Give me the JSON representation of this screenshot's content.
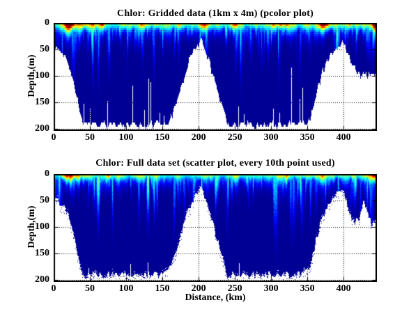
{
  "figure": {
    "background": "#ffffff",
    "axis_color": "#000000",
    "grid_style": "dotted",
    "colors": {
      "deep_water": "#000090",
      "cyan_band": "#00ccff",
      "hotspot_red": "#e01000"
    }
  },
  "chart_data": [
    {
      "type": "pcolor",
      "title": "Chlor: Gridded data (1km x 4m) (pcolor plot)",
      "xlabel": "",
      "ylabel": "Depth,(m)",
      "xlim": [
        0,
        446
      ],
      "ylim": [
        0,
        204
      ],
      "xticks": [
        0,
        50,
        100,
        150,
        200,
        250,
        300,
        350,
        400
      ],
      "yticks": [
        0,
        50,
        100,
        150,
        200
      ],
      "grid": true,
      "colormap": "jet",
      "value_scale": "chlorophyll relative 0-1, jet: 0=navy deep water, 1=red surface bloom",
      "envelope_km_depth": [
        [
          0,
          40
        ],
        [
          6,
          45
        ],
        [
          12,
          55
        ],
        [
          20,
          78
        ],
        [
          26,
          105
        ],
        [
          31,
          138
        ],
        [
          36,
          168
        ],
        [
          40,
          190
        ],
        [
          70,
          190
        ],
        [
          100,
          190
        ],
        [
          130,
          190
        ],
        [
          150,
          189
        ],
        [
          158,
          186
        ],
        [
          163,
          172
        ],
        [
          170,
          138
        ],
        [
          178,
          102
        ],
        [
          186,
          68
        ],
        [
          193,
          48
        ],
        [
          199,
          36
        ],
        [
          203,
          31
        ],
        [
          207,
          42
        ],
        [
          213,
          68
        ],
        [
          220,
          98
        ],
        [
          228,
          138
        ],
        [
          234,
          168
        ],
        [
          239,
          190
        ],
        [
          270,
          190
        ],
        [
          300,
          190
        ],
        [
          330,
          190
        ],
        [
          345,
          189
        ],
        [
          352,
          182
        ],
        [
          357,
          162
        ],
        [
          363,
          125
        ],
        [
          370,
          92
        ],
        [
          378,
          65
        ],
        [
          386,
          48
        ],
        [
          393,
          37
        ],
        [
          397,
          33
        ],
        [
          401,
          42
        ],
        [
          406,
          62
        ],
        [
          412,
          80
        ],
        [
          418,
          92
        ],
        [
          424,
          97
        ],
        [
          430,
          96
        ],
        [
          436,
          96
        ],
        [
          441,
          90
        ],
        [
          446,
          97
        ]
      ],
      "surface_intensity_km": [
        [
          0,
          0.35
        ],
        [
          6,
          0.42
        ],
        [
          12,
          0.6
        ],
        [
          17,
          0.92
        ],
        [
          21,
          1.0
        ],
        [
          26,
          0.95
        ],
        [
          31,
          0.72
        ],
        [
          38,
          0.66
        ],
        [
          46,
          0.6
        ],
        [
          54,
          0.68
        ],
        [
          60,
          0.52
        ],
        [
          66,
          0.82
        ],
        [
          71,
          0.55
        ],
        [
          78,
          0.42
        ],
        [
          86,
          0.38
        ],
        [
          94,
          0.52
        ],
        [
          101,
          0.58
        ],
        [
          108,
          0.42
        ],
        [
          115,
          0.5
        ],
        [
          121,
          0.62
        ],
        [
          128,
          0.48
        ],
        [
          136,
          0.42
        ],
        [
          143,
          0.58
        ],
        [
          150,
          0.52
        ],
        [
          157,
          0.42
        ],
        [
          164,
          0.48
        ],
        [
          171,
          0.62
        ],
        [
          179,
          0.45
        ],
        [
          187,
          0.38
        ],
        [
          195,
          0.42
        ],
        [
          202,
          0.62
        ],
        [
          208,
          0.78
        ],
        [
          214,
          0.68
        ],
        [
          221,
          0.5
        ],
        [
          229,
          0.42
        ],
        [
          238,
          0.38
        ],
        [
          247,
          0.68
        ],
        [
          252,
          0.78
        ],
        [
          257,
          0.55
        ],
        [
          264,
          0.42
        ],
        [
          272,
          0.38
        ],
        [
          280,
          0.46
        ],
        [
          288,
          0.42
        ],
        [
          295,
          0.6
        ],
        [
          301,
          0.68
        ],
        [
          308,
          0.55
        ],
        [
          314,
          0.66
        ],
        [
          321,
          0.72
        ],
        [
          328,
          0.55
        ],
        [
          336,
          0.44
        ],
        [
          344,
          0.5
        ],
        [
          351,
          0.58
        ],
        [
          359,
          0.52
        ],
        [
          366,
          0.75
        ],
        [
          372,
          0.82
        ],
        [
          379,
          0.62
        ],
        [
          386,
          0.48
        ],
        [
          393,
          0.44
        ],
        [
          400,
          0.52
        ],
        [
          407,
          0.66
        ],
        [
          414,
          0.52
        ],
        [
          421,
          0.48
        ],
        [
          427,
          0.58
        ],
        [
          433,
          0.62
        ],
        [
          437,
          0.78
        ],
        [
          441,
          0.95
        ],
        [
          446,
          1.05
        ]
      ],
      "gap_columns_km_topdepth": [
        [
          41,
          152
        ],
        [
          50,
          162
        ],
        [
          74,
          148
        ],
        [
          109,
          118
        ],
        [
          125,
          165
        ],
        [
          131,
          105
        ],
        [
          134,
          112
        ],
        [
          146,
          170
        ],
        [
          152,
          175
        ],
        [
          255,
          158
        ],
        [
          262,
          172
        ],
        [
          303,
          162
        ],
        [
          311,
          170
        ],
        [
          328,
          84
        ],
        [
          339,
          144
        ],
        [
          343,
          122
        ]
      ],
      "render": {
        "seed": 11,
        "quantize_km": 1,
        "quantize_m": 4,
        "speckle": false
      }
    },
    {
      "type": "scatter",
      "title": "Chlor: Full data set (scatter plot, every 10th point used)",
      "xlabel": "Distance, (km)",
      "ylabel": "Depth,(m)",
      "xlim": [
        0,
        446
      ],
      "ylim": [
        0,
        204
      ],
      "xticks": [
        0,
        50,
        100,
        150,
        200,
        250,
        300,
        350,
        400
      ],
      "yticks": [
        0,
        50,
        100,
        150,
        200
      ],
      "grid": true,
      "colormap": "jet",
      "value_scale": "chlorophyll relative 0-1, jet: 0=navy deep water, 1=red surface bloom",
      "envelope_km_depth": [
        [
          0,
          48
        ],
        [
          6,
          50
        ],
        [
          12,
          58
        ],
        [
          20,
          80
        ],
        [
          26,
          108
        ],
        [
          31,
          140
        ],
        [
          36,
          170
        ],
        [
          40,
          191
        ],
        [
          80,
          190
        ],
        [
          120,
          190
        ],
        [
          150,
          189
        ],
        [
          157,
          185
        ],
        [
          163,
          170
        ],
        [
          170,
          135
        ],
        [
          178,
          100
        ],
        [
          186,
          66
        ],
        [
          193,
          46
        ],
        [
          199,
          33
        ],
        [
          203,
          28
        ],
        [
          207,
          40
        ],
        [
          213,
          66
        ],
        [
          220,
          96
        ],
        [
          228,
          136
        ],
        [
          234,
          166
        ],
        [
          239,
          190
        ],
        [
          270,
          190
        ],
        [
          300,
          190
        ],
        [
          330,
          190
        ],
        [
          344,
          188
        ],
        [
          351,
          180
        ],
        [
          356,
          160
        ],
        [
          362,
          122
        ],
        [
          369,
          90
        ],
        [
          377,
          62
        ],
        [
          385,
          45
        ],
        [
          392,
          33
        ],
        [
          397,
          28
        ],
        [
          401,
          40
        ],
        [
          405,
          60
        ],
        [
          410,
          78
        ],
        [
          415,
          90
        ],
        [
          420,
          88
        ],
        [
          425,
          62
        ],
        [
          428,
          50
        ],
        [
          431,
          62
        ],
        [
          435,
          85
        ],
        [
          439,
          96
        ],
        [
          443,
          91
        ],
        [
          446,
          87
        ]
      ],
      "surface_intensity_km": [
        [
          0,
          0.38
        ],
        [
          5,
          0.45
        ],
        [
          10,
          0.62
        ],
        [
          15,
          0.88
        ],
        [
          19,
          1.0
        ],
        [
          24,
          0.92
        ],
        [
          29,
          0.75
        ],
        [
          36,
          0.8
        ],
        [
          42,
          0.66
        ],
        [
          46,
          0.8
        ],
        [
          52,
          0.7
        ],
        [
          58,
          0.6
        ],
        [
          64,
          0.52
        ],
        [
          70,
          0.48
        ],
        [
          75,
          0.85
        ],
        [
          80,
          0.5
        ],
        [
          86,
          0.55
        ],
        [
          92,
          0.62
        ],
        [
          100,
          0.48
        ],
        [
          107,
          0.44
        ],
        [
          114,
          0.55
        ],
        [
          120,
          0.65
        ],
        [
          127,
          0.5
        ],
        [
          134,
          0.44
        ],
        [
          141,
          0.6
        ],
        [
          148,
          0.55
        ],
        [
          155,
          0.44
        ],
        [
          162,
          0.5
        ],
        [
          170,
          0.62
        ],
        [
          178,
          0.48
        ],
        [
          186,
          0.4
        ],
        [
          194,
          0.45
        ],
        [
          201,
          0.6
        ],
        [
          207,
          0.72
        ],
        [
          213,
          0.62
        ],
        [
          220,
          0.48
        ],
        [
          228,
          0.42
        ],
        [
          237,
          0.4
        ],
        [
          245,
          0.62
        ],
        [
          250,
          0.7
        ],
        [
          256,
          0.52
        ],
        [
          263,
          0.44
        ],
        [
          271,
          0.4
        ],
        [
          279,
          0.48
        ],
        [
          287,
          0.44
        ],
        [
          294,
          0.62
        ],
        [
          300,
          0.7
        ],
        [
          307,
          0.58
        ],
        [
          313,
          0.68
        ],
        [
          320,
          0.75
        ],
        [
          327,
          0.58
        ],
        [
          335,
          0.46
        ],
        [
          343,
          0.52
        ],
        [
          350,
          0.6
        ],
        [
          358,
          0.55
        ],
        [
          365,
          0.78
        ],
        [
          371,
          0.85
        ],
        [
          378,
          0.65
        ],
        [
          385,
          0.5
        ],
        [
          392,
          0.46
        ],
        [
          399,
          0.55
        ],
        [
          406,
          0.68
        ],
        [
          413,
          0.55
        ],
        [
          420,
          0.5
        ],
        [
          426,
          0.6
        ],
        [
          432,
          0.65
        ],
        [
          436,
          0.8
        ],
        [
          440,
          0.97
        ],
        [
          443,
          1.05
        ],
        [
          446,
          1.05
        ]
      ],
      "gap_columns_km_topdepth": [
        [
          48,
          178
        ],
        [
          106,
          170
        ],
        [
          130,
          167
        ],
        [
          256,
          168
        ],
        [
          345,
          176
        ]
      ],
      "render": {
        "seed": 47,
        "quantize_km": 0,
        "quantize_m": 0,
        "speckle": true
      }
    }
  ]
}
